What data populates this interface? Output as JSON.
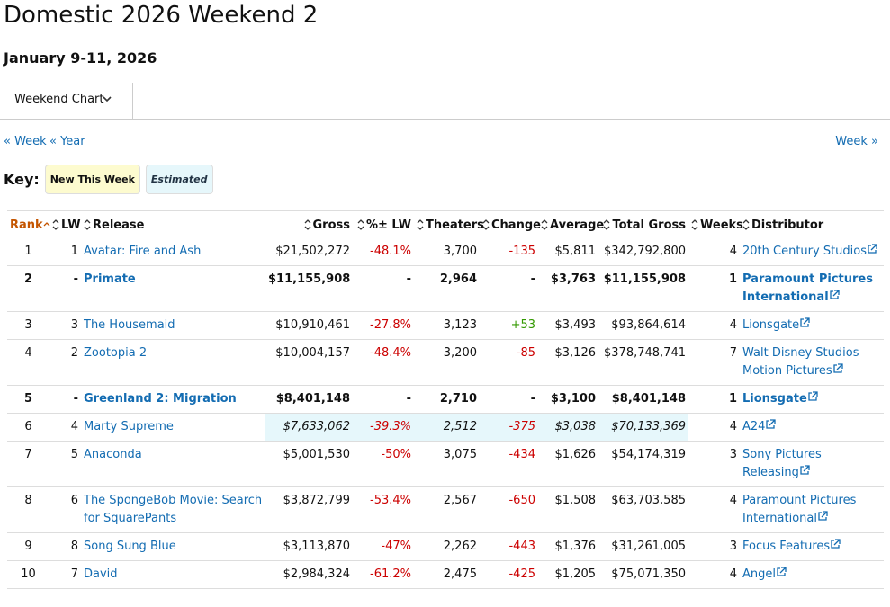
{
  "header": {
    "title": "Domestic 2026 Weekend 2",
    "date": "January 9-11, 2026"
  },
  "dropdown": "Weekend Chart",
  "nav": {
    "prev_week": "« Week",
    "prev_year": "« Year",
    "next_week": "Week »"
  },
  "key": {
    "label": "Key:",
    "new": "New This Week",
    "estimated": "Estimated"
  },
  "table": {
    "columns": [
      "Rank",
      "LW",
      "Release",
      "Gross",
      "%± LW",
      "Theaters",
      "Change",
      "Average",
      "Total Gross",
      "Weeks",
      "Distributor"
    ],
    "rows": [
      {
        "cells": [
          "1",
          "1",
          "Avatar: Fire and Ash",
          "$21,502,272",
          "-48.1%",
          "3,700",
          "-135",
          "$5,811",
          "$342,792,800",
          "4",
          "20th Century Studios"
        ]
      },
      {
        "cells": [
          "2",
          "-",
          "Primate",
          "$11,155,908",
          "-",
          "2,964",
          "-",
          "$3,763",
          "$11,155,908",
          "1",
          "Paramount Pictures International"
        ],
        "new": true
      },
      {
        "cells": [
          "3",
          "3",
          "The Housemaid",
          "$10,910,461",
          "-27.8%",
          "3,123",
          "+53",
          "$3,493",
          "$93,864,614",
          "4",
          "Lionsgate"
        ]
      },
      {
        "cells": [
          "4",
          "2",
          "Zootopia 2",
          "$10,004,157",
          "-48.4%",
          "3,200",
          "-85",
          "$3,126",
          "$378,748,741",
          "7",
          "Walt Disney Studios Motion Pictures"
        ]
      },
      {
        "cells": [
          "5",
          "-",
          "Greenland 2: Migration",
          "$8,401,148",
          "-",
          "2,710",
          "-",
          "$3,100",
          "$8,401,148",
          "1",
          "Lionsgate"
        ],
        "new": true
      },
      {
        "cells": [
          "6",
          "4",
          "Marty Supreme",
          "$7,633,062",
          "-39.3%",
          "2,512",
          "-375",
          "$3,038",
          "$70,133,369",
          "4",
          "A24"
        ],
        "estimated": true
      },
      {
        "cells": [
          "7",
          "5",
          "Anaconda",
          "$5,001,530",
          "-50%",
          "3,075",
          "-434",
          "$1,626",
          "$54,174,319",
          "3",
          "Sony Pictures Releasing"
        ]
      },
      {
        "cells": [
          "8",
          "6",
          "The SpongeBob Movie: Search for SquarePants",
          "$3,872,799",
          "-53.4%",
          "2,567",
          "-650",
          "$1,508",
          "$63,703,585",
          "4",
          "Paramount Pictures International"
        ]
      },
      {
        "cells": [
          "9",
          "8",
          "Song Sung Blue",
          "$3,113,870",
          "-47%",
          "2,262",
          "-443",
          "$1,376",
          "$31,261,005",
          "3",
          "Focus Features"
        ]
      },
      {
        "cells": [
          "10",
          "7",
          "David",
          "$2,984,324",
          "-61.2%",
          "2,475",
          "-425",
          "$1,205",
          "$75,071,350",
          "4",
          "Angel"
        ]
      }
    ]
  }
}
